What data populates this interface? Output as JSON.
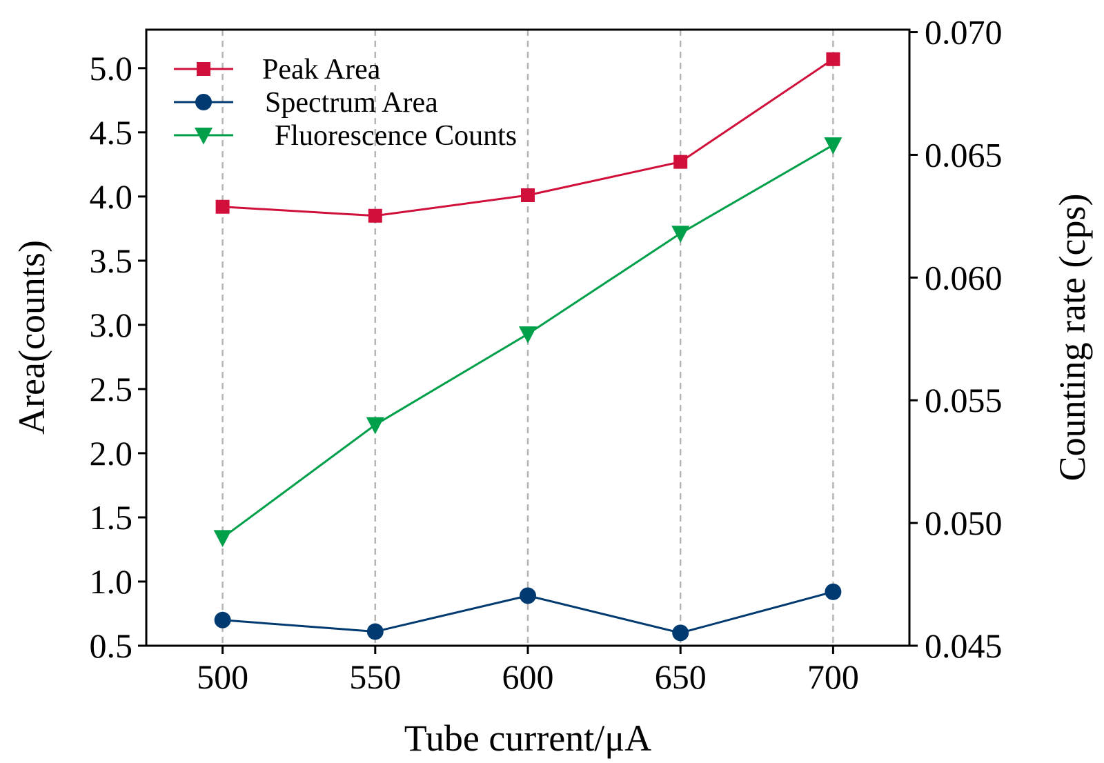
{
  "chart_data": {
    "type": "line",
    "x": [
      500,
      550,
      600,
      650,
      700
    ],
    "xlabel": "Tube current/μA",
    "xlim": [
      475,
      725
    ],
    "x_ticks": [
      "500",
      "550",
      "600",
      "650",
      "700"
    ],
    "ylabel_left": "Area(counts)",
    "ylim_left": [
      0.5,
      5.3
    ],
    "y_ticks_left": [
      "0.5",
      "1.0",
      "1.5",
      "2.0",
      "2.5",
      "3.0",
      "3.5",
      "4.0",
      "4.5",
      "5.0"
    ],
    "ylabel_right": "Counting rate (cps)",
    "ylim_right": [
      0.045,
      0.0701
    ],
    "y_ticks_right": [
      "0.045",
      "0.050",
      "0.055",
      "0.060",
      "0.065",
      "0.070"
    ],
    "grid": "vertical dashed at x ticks",
    "legend_position": "top-left",
    "series": [
      {
        "name": "Peak Area",
        "axis": "left",
        "color": "#d0103a",
        "marker": "square",
        "values": [
          3.92,
          3.85,
          4.01,
          4.27,
          5.07
        ]
      },
      {
        "name": "Spectrum Area",
        "axis": "left",
        "color": "#003a70",
        "marker": "circle",
        "values": [
          0.7,
          0.61,
          0.89,
          0.6,
          0.92
        ]
      },
      {
        "name": "Fluorescence Counts",
        "axis": "right",
        "color": "#00a04a",
        "marker": "triangle-down",
        "values": [
          0.0494,
          0.054,
          0.0577,
          0.0618,
          0.0654
        ]
      }
    ]
  }
}
